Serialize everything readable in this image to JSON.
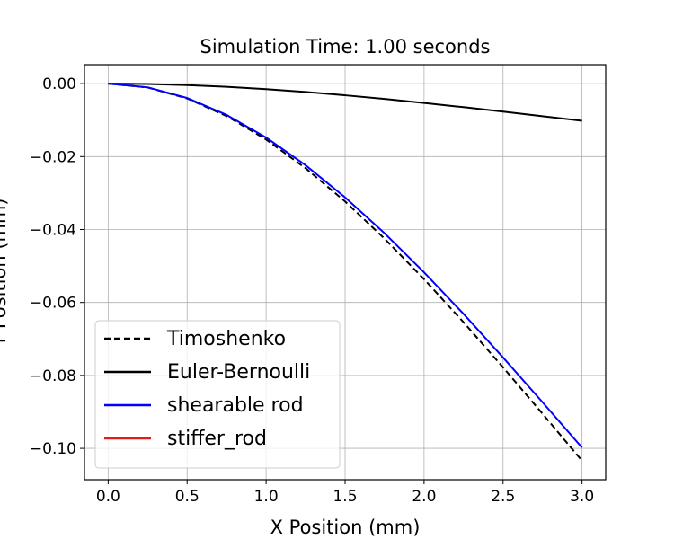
{
  "chart_data": {
    "type": "line",
    "title": "Simulation Time: 1.00 seconds",
    "x_label": "X Position (mm)",
    "y_label": "Y Position (mm)",
    "x": [
      0,
      0.25,
      0.5,
      0.75,
      1,
      1.25,
      1.5,
      1.75,
      2,
      2.25,
      2.5,
      2.75,
      3
    ],
    "series": [
      {
        "name": "Timoshenko",
        "color": "#000000",
        "linestyle": "dashed",
        "values": [
          0,
          -0.00105,
          -0.00407,
          -0.00889,
          -0.01532,
          -0.02319,
          -0.03231,
          -0.04251,
          -0.05361,
          -0.06543,
          -0.07779,
          -0.0905,
          -0.1034
        ]
      },
      {
        "name": "Euler-Bernoulli",
        "color": "#000000",
        "linestyle": "solid",
        "values": [
          0,
          -0.0001,
          -0.0004,
          -0.00088,
          -0.00151,
          -0.00229,
          -0.00319,
          -0.00419,
          -0.00529,
          -0.00645,
          -0.00767,
          -0.00893,
          -0.0102
        ]
      },
      {
        "name": "shearable rod",
        "color": "#0000ff",
        "linestyle": "solid",
        "values": [
          0,
          -0.00101,
          -0.00393,
          -0.00858,
          -0.01479,
          -0.02238,
          -0.03119,
          -0.04103,
          -0.05175,
          -0.06315,
          -0.07508,
          -0.08735,
          -0.0998
        ]
      },
      {
        "name": "stiffer_rod",
        "color": "#e41a1c",
        "linestyle": "solid",
        "values": [
          null,
          null,
          null,
          null,
          null,
          null,
          null,
          null,
          null,
          null,
          null,
          null,
          null
        ]
      }
    ],
    "xlim": [
      -0.15,
      3.15
    ],
    "ylim": [
      -0.1086,
      0.0052
    ],
    "xticks": [
      {
        "value": 0,
        "label": "0.0"
      },
      0.5,
      {
        "value": 1,
        "label": "1.0"
      },
      1.5,
      {
        "value": 2,
        "label": "2.0"
      },
      2.5,
      {
        "value": 3,
        "label": "3.0"
      }
    ],
    "yticks": [
      {
        "value": -0.1,
        "label": "−0.10"
      },
      {
        "value": -0.08,
        "label": "−0.08"
      },
      {
        "value": -0.06,
        "label": "−0.06"
      },
      {
        "value": -0.04,
        "label": "−0.04"
      },
      {
        "value": -0.02,
        "label": "−0.02"
      },
      {
        "value": 0,
        "label": "0.00"
      }
    ],
    "grid": true,
    "legend": "lower left"
  }
}
